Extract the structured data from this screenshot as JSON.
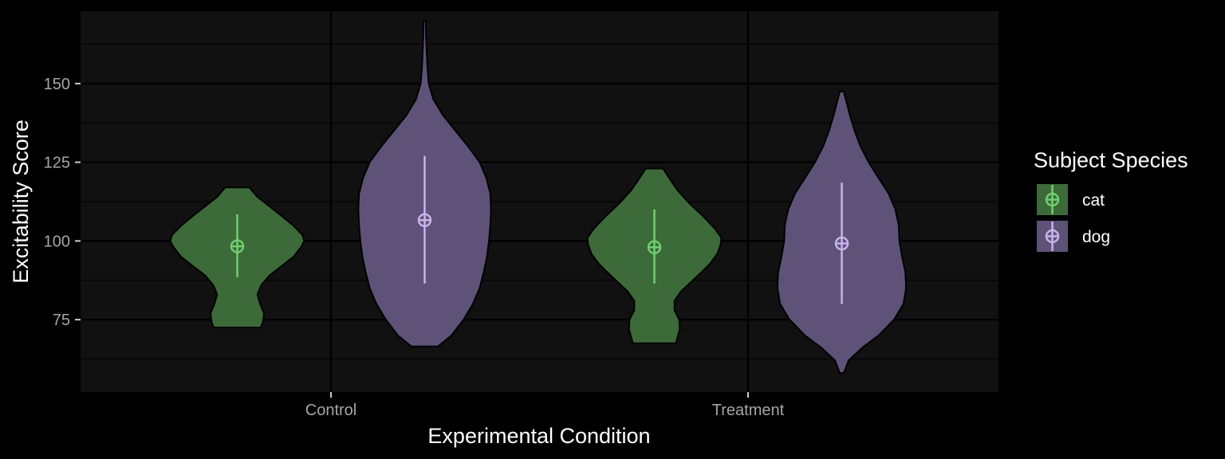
{
  "chart_data": {
    "type": "violin",
    "title": "",
    "xlabel": "Experimental Condition",
    "ylabel": "Excitability Score",
    "categories": [
      "Control",
      "Treatment"
    ],
    "yticks": [
      75,
      100,
      125,
      150
    ],
    "ylim": [
      52,
      173
    ],
    "grid": true,
    "legend": {
      "title": "Subject Species",
      "position": "right"
    },
    "series": [
      {
        "name": "cat",
        "color": "#6fd06f",
        "fill": "#3c6a38",
        "violins": [
          {
            "category": "Control",
            "min": 72.5,
            "max": 117,
            "mean": 98.3,
            "lower": 88.5,
            "upper": 108.5,
            "profile": [
              [
                72.5,
                0.35
              ],
              [
                74,
                0.38
              ],
              [
                77,
                0.4
              ],
              [
                80,
                0.34
              ],
              [
                83,
                0.3
              ],
              [
                86,
                0.36
              ],
              [
                89,
                0.48
              ],
              [
                92,
                0.66
              ],
              [
                95,
                0.84
              ],
              [
                98,
                0.95
              ],
              [
                100,
                1.0
              ],
              [
                102,
                0.97
              ],
              [
                105,
                0.83
              ],
              [
                108,
                0.66
              ],
              [
                111,
                0.48
              ],
              [
                114,
                0.3
              ],
              [
                117,
                0.18
              ]
            ]
          },
          {
            "category": "Treatment",
            "min": 67.5,
            "max": 123,
            "mean": 98.0,
            "lower": 86.5,
            "upper": 110,
            "profile": [
              [
                67.5,
                0.32
              ],
              [
                69,
                0.34
              ],
              [
                72,
                0.38
              ],
              [
                75,
                0.37
              ],
              [
                78,
                0.3
              ],
              [
                81,
                0.3
              ],
              [
                84,
                0.4
              ],
              [
                87,
                0.55
              ],
              [
                90,
                0.7
              ],
              [
                93,
                0.84
              ],
              [
                96,
                0.94
              ],
              [
                99,
                0.99
              ],
              [
                101,
                1.0
              ],
              [
                104,
                0.9
              ],
              [
                108,
                0.72
              ],
              [
                112,
                0.52
              ],
              [
                116,
                0.35
              ],
              [
                120,
                0.22
              ],
              [
                123,
                0.13
              ]
            ]
          }
        ]
      },
      {
        "name": "dog",
        "color": "#c9b3ec",
        "fill": "#5e5278",
        "violins": [
          {
            "category": "Control",
            "min": 66.5,
            "max": 170,
            "mean": 106.6,
            "lower": 86.5,
            "upper": 127,
            "profile": [
              [
                66.5,
                0.2
              ],
              [
                70,
                0.4
              ],
              [
                75,
                0.58
              ],
              [
                80,
                0.72
              ],
              [
                85,
                0.82
              ],
              [
                90,
                0.88
              ],
              [
                95,
                0.93
              ],
              [
                100,
                0.96
              ],
              [
                105,
                0.98
              ],
              [
                110,
                0.99
              ],
              [
                115,
                0.98
              ],
              [
                120,
                0.92
              ],
              [
                125,
                0.82
              ],
              [
                130,
                0.65
              ],
              [
                135,
                0.46
              ],
              [
                140,
                0.27
              ],
              [
                145,
                0.13
              ],
              [
                150,
                0.06
              ],
              [
                155,
                0.04
              ],
              [
                160,
                0.03
              ],
              [
                165,
                0.02
              ],
              [
                170,
                0.015
              ]
            ]
          },
          {
            "category": "Treatment",
            "min": 58,
            "max": 147.5,
            "mean": 99.2,
            "lower": 80,
            "upper": 118.5,
            "profile": [
              [
                58,
                0.03
              ],
              [
                62,
                0.1
              ],
              [
                66,
                0.3
              ],
              [
                70,
                0.55
              ],
              [
                75,
                0.78
              ],
              [
                80,
                0.92
              ],
              [
                85,
                0.96
              ],
              [
                90,
                0.95
              ],
              [
                95,
                0.9
              ],
              [
                100,
                0.86
              ],
              [
                105,
                0.85
              ],
              [
                110,
                0.8
              ],
              [
                115,
                0.7
              ],
              [
                120,
                0.55
              ],
              [
                125,
                0.4
              ],
              [
                130,
                0.28
              ],
              [
                135,
                0.19
              ],
              [
                140,
                0.12
              ],
              [
                145,
                0.06
              ],
              [
                147.5,
                0.03
              ]
            ]
          }
        ]
      }
    ]
  }
}
